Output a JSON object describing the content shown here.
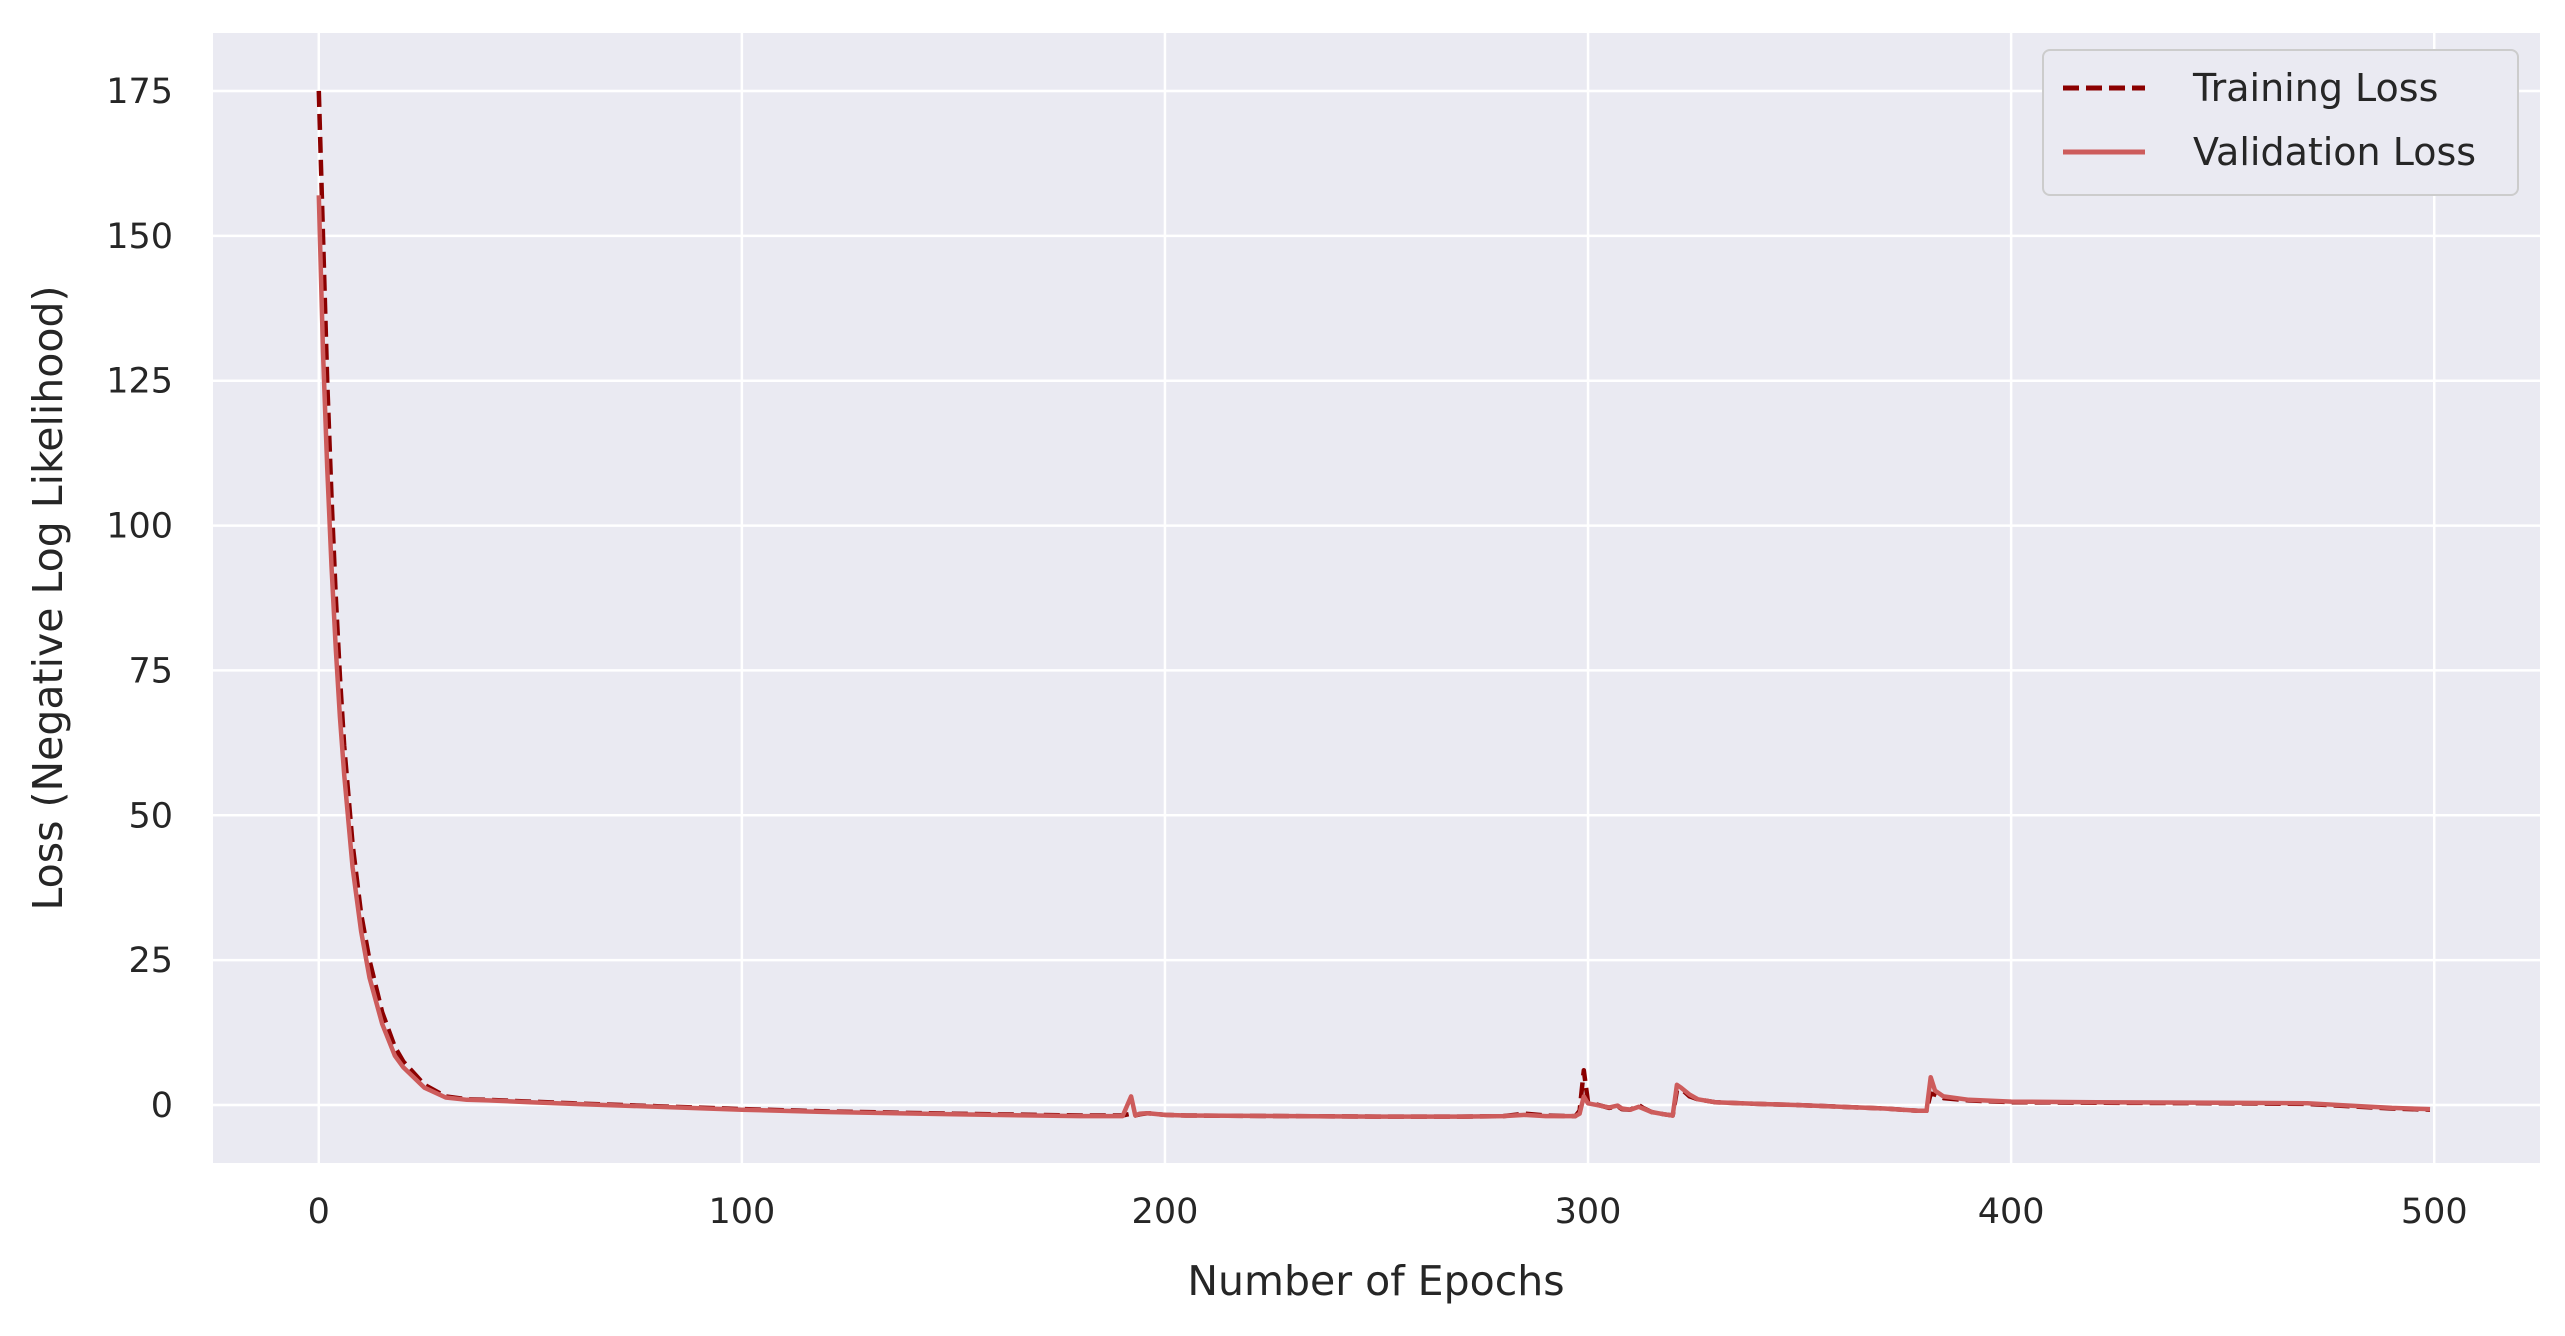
{
  "chart_data": {
    "type": "line",
    "title": "",
    "xlabel": "Number of Epochs",
    "ylabel": "Loss (Negative Log Likelihood)",
    "xlim": [
      -25,
      525
    ],
    "ylim": [
      -10,
      185
    ],
    "xticks": [
      0,
      100,
      200,
      300,
      400,
      500
    ],
    "yticks": [
      0,
      25,
      50,
      75,
      100,
      125,
      150,
      175
    ],
    "grid": true,
    "legend_position": "top-right",
    "series": [
      {
        "name": "Training Loss",
        "style": "dashed",
        "color": "#8b0000",
        "x": [
          0,
          1,
          2,
          3,
          4,
          5,
          6,
          8,
          10,
          12,
          15,
          18,
          20,
          25,
          30,
          35,
          40,
          50,
          60,
          80,
          100,
          120,
          150,
          180,
          190,
          192,
          193,
          194,
          196,
          200,
          205,
          230,
          250,
          270,
          280,
          285,
          290,
          295,
          297,
          298,
          299,
          300,
          305,
          307,
          308,
          310,
          312,
          313,
          315,
          318,
          320,
          321,
          322,
          324,
          326,
          330,
          340,
          350,
          370,
          378,
          380,
          381,
          382,
          384,
          390,
          400,
          420,
          450,
          470,
          480,
          490,
          499
        ],
        "y": [
          175,
          150,
          125,
          105,
          88,
          74,
          62,
          45,
          33,
          25,
          16,
          10,
          7.5,
          3.5,
          1.5,
          1.0,
          0.9,
          0.6,
          0.3,
          -0.2,
          -0.7,
          -1.1,
          -1.5,
          -1.8,
          -1.8,
          -1.5,
          -1.8,
          -1.6,
          -1.4,
          -1.7,
          -1.8,
          -1.9,
          -2.0,
          -2.0,
          -1.9,
          -1.5,
          -1.8,
          -1.9,
          -1.9,
          -1.0,
          6.0,
          0.5,
          -0.5,
          -0.2,
          -0.7,
          -0.8,
          0,
          -0.5,
          -1.2,
          -1.6,
          -1.8,
          2.5,
          2.8,
          1.5,
          1.0,
          0.5,
          0.2,
          0.0,
          -0.6,
          -1.0,
          -1.0,
          2.0,
          1.8,
          1.2,
          0.8,
          0.5,
          0.4,
          0.3,
          0.2,
          -0.2,
          -0.6,
          -0.8
        ]
      },
      {
        "name": "Validation Loss",
        "style": "solid",
        "color": "#cd5c5c",
        "x": [
          0,
          1,
          2,
          3,
          4,
          5,
          6,
          8,
          10,
          12,
          15,
          18,
          20,
          25,
          30,
          35,
          40,
          50,
          60,
          80,
          100,
          120,
          150,
          180,
          190,
          192,
          193,
          194,
          196,
          200,
          205,
          230,
          250,
          270,
          280,
          285,
          290,
          295,
          297,
          298,
          299,
          300,
          305,
          307,
          308,
          310,
          312,
          313,
          315,
          318,
          320,
          321,
          322,
          324,
          326,
          330,
          340,
          350,
          370,
          378,
          380,
          381,
          382,
          384,
          390,
          400,
          420,
          450,
          470,
          480,
          490,
          499
        ],
        "y": [
          157,
          130,
          110,
          93,
          79,
          67,
          57,
          41,
          30,
          22,
          14,
          8.5,
          6.5,
          3.0,
          1.3,
          0.9,
          0.8,
          0.5,
          0.2,
          -0.3,
          -0.8,
          -1.2,
          -1.6,
          -1.9,
          -1.9,
          1.5,
          -1.8,
          -1.5,
          -1.4,
          -1.7,
          -1.8,
          -1.9,
          -2.0,
          -2.0,
          -1.9,
          -1.7,
          -1.9,
          -1.9,
          -1.9,
          -1.5,
          1.5,
          0.3,
          -0.4,
          -0.1,
          -0.6,
          -0.8,
          -0.3,
          -0.6,
          -1.2,
          -1.6,
          -1.8,
          3.5,
          3.0,
          1.8,
          1.0,
          0.5,
          0.2,
          0.0,
          -0.6,
          -1.0,
          -1.0,
          4.8,
          2.5,
          1.5,
          0.9,
          0.6,
          0.5,
          0.4,
          0.3,
          -0.1,
          -0.5,
          -0.7
        ]
      }
    ]
  }
}
